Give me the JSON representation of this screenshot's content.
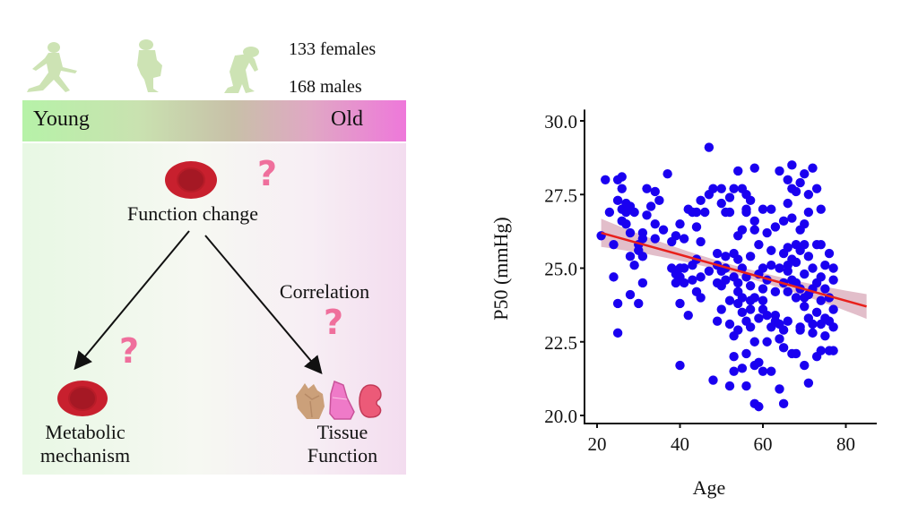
{
  "diagram": {
    "counts": {
      "females": "133 females",
      "males": "168 males"
    },
    "age_bar": {
      "left_label": "Young",
      "right_label": "Old"
    },
    "nodes": {
      "top": "Function change",
      "left_line1": "Metabolic",
      "left_line2": "mechanism",
      "right_line1": "Tissue",
      "right_line2": "Function",
      "edge_label": "Correlation"
    },
    "question_mark": "?",
    "icons": [
      "young-person-icon",
      "middle-aged-person-icon",
      "elderly-person-icon",
      "red-blood-cell-icon",
      "heart-icon",
      "lung-icon",
      "kidney-icon"
    ],
    "colors": {
      "figure": "#cde3b4",
      "rbc": "#c8202e",
      "question": "#ef6f9c",
      "green": "#b6f2a8",
      "pink": "#ee78da"
    }
  },
  "chart_data": {
    "type": "scatter",
    "title": "",
    "xlabel": "Age",
    "ylabel": "P50 (mmHg)",
    "xlim": [
      17,
      89
    ],
    "ylim": [
      19.8,
      30.2
    ],
    "xticks": [
      20,
      40,
      60,
      80
    ],
    "yticks": [
      20.0,
      22.5,
      25.0,
      27.5,
      30.0
    ],
    "xtick_labels": [
      "20",
      "40",
      "60",
      "80"
    ],
    "ytick_labels": [
      "20.0",
      "22.5",
      "25.0",
      "27.5",
      "30.0"
    ],
    "grid": false,
    "legend": "none",
    "point_color": "#1a00f0",
    "fit": {
      "type": "linear",
      "color": "#e8201c",
      "ci_color": "#d8a8b8",
      "x": [
        21,
        85
      ],
      "y": [
        26.2,
        23.7
      ],
      "ci_halfwidth_ends": [
        0.48,
        0.42
      ],
      "ci_halfwidth_mid": 0.15
    },
    "points": [
      [
        21,
        26.1
      ],
      [
        22,
        28.0
      ],
      [
        23,
        26.9
      ],
      [
        24,
        25.8
      ],
      [
        24,
        24.7
      ],
      [
        25,
        22.8
      ],
      [
        25,
        23.8
      ],
      [
        25,
        27.3
      ],
      [
        25,
        28.0
      ],
      [
        26,
        27.0
      ],
      [
        26,
        28.1
      ],
      [
        26,
        26.6
      ],
      [
        26,
        27.7
      ],
      [
        27,
        26.9
      ],
      [
        27,
        27.2
      ],
      [
        27,
        26.5
      ],
      [
        28,
        26.2
      ],
      [
        28,
        25.4
      ],
      [
        28,
        24.1
      ],
      [
        29,
        26.9
      ],
      [
        29,
        25.1
      ],
      [
        30,
        25.8
      ],
      [
        30,
        23.8
      ],
      [
        30,
        25.6
      ],
      [
        31,
        26.0
      ],
      [
        31,
        25.4
      ],
      [
        31,
        24.5
      ],
      [
        31,
        26.2
      ],
      [
        32,
        27.7
      ],
      [
        32,
        26.8
      ],
      [
        33,
        27.1
      ],
      [
        34,
        27.6
      ],
      [
        34,
        26.5
      ],
      [
        34,
        26.0
      ],
      [
        35,
        27.3
      ],
      [
        36,
        26.3
      ],
      [
        37,
        28.2
      ],
      [
        38,
        25.0
      ],
      [
        38,
        25.9
      ],
      [
        39,
        24.5
      ],
      [
        39,
        24.8
      ],
      [
        39,
        26.1
      ],
      [
        40,
        23.8
      ],
      [
        40,
        24.7
      ],
      [
        40,
        25.0
      ],
      [
        40,
        21.7
      ],
      [
        40,
        26.5
      ],
      [
        41,
        26.0
      ],
      [
        41,
        25.0
      ],
      [
        41,
        24.5
      ],
      [
        42,
        27.0
      ],
      [
        42,
        23.4
      ],
      [
        43,
        25.1
      ],
      [
        43,
        24.6
      ],
      [
        44,
        26.9
      ],
      [
        44,
        25.3
      ],
      [
        44,
        24.2
      ],
      [
        44,
        26.4
      ],
      [
        45,
        27.3
      ],
      [
        45,
        25.9
      ],
      [
        45,
        24.7
      ],
      [
        45,
        24.0
      ],
      [
        46,
        26.9
      ],
      [
        47,
        24.9
      ],
      [
        47,
        27.5
      ],
      [
        48,
        21.2
      ],
      [
        48,
        27.7
      ],
      [
        49,
        25.5
      ],
      [
        49,
        24.5
      ],
      [
        49,
        23.2
      ],
      [
        49,
        25.1
      ],
      [
        50,
        24.4
      ],
      [
        50,
        24.9
      ],
      [
        50,
        27.2
      ],
      [
        50,
        23.6
      ],
      [
        51,
        26.9
      ],
      [
        51,
        25.4
      ],
      [
        51,
        24.6
      ],
      [
        52,
        21.0
      ],
      [
        52,
        27.4
      ],
      [
        52,
        26.9
      ],
      [
        52,
        23.9
      ],
      [
        52,
        23.1
      ],
      [
        53,
        27.7
      ],
      [
        53,
        25.5
      ],
      [
        53,
        22.7
      ],
      [
        53,
        22.0
      ],
      [
        53,
        21.5
      ],
      [
        54,
        26.1
      ],
      [
        54,
        24.2
      ],
      [
        54,
        23.8
      ],
      [
        54,
        28.3
      ],
      [
        54,
        22.9
      ],
      [
        54,
        24.5
      ],
      [
        55,
        27.7
      ],
      [
        55,
        26.3
      ],
      [
        55,
        25.0
      ],
      [
        55,
        23.5
      ],
      [
        55,
        21.6
      ],
      [
        56,
        27.5
      ],
      [
        56,
        27.0
      ],
      [
        56,
        24.7
      ],
      [
        56,
        23.2
      ],
      [
        56,
        22.1
      ],
      [
        56,
        21.0
      ],
      [
        57,
        25.4
      ],
      [
        57,
        24.4
      ],
      [
        57,
        23.9
      ],
      [
        57,
        23.0
      ],
      [
        57,
        27.3
      ],
      [
        58,
        28.4
      ],
      [
        58,
        26.6
      ],
      [
        58,
        26.3
      ],
      [
        58,
        24.0
      ],
      [
        58,
        22.5
      ],
      [
        58,
        21.7
      ],
      [
        58,
        20.4
      ],
      [
        59,
        25.8
      ],
      [
        59,
        24.8
      ],
      [
        59,
        23.3
      ],
      [
        59,
        21.8
      ],
      [
        59,
        20.3
      ],
      [
        60,
        27.0
      ],
      [
        60,
        25.0
      ],
      [
        60,
        24.3
      ],
      [
        60,
        23.6
      ],
      [
        60,
        21.5
      ],
      [
        61,
        26.2
      ],
      [
        61,
        24.6
      ],
      [
        61,
        23.4
      ],
      [
        61,
        22.5
      ],
      [
        62,
        27.0
      ],
      [
        62,
        25.6
      ],
      [
        62,
        25.1
      ],
      [
        62,
        23.0
      ],
      [
        62,
        21.5
      ],
      [
        63,
        26.4
      ],
      [
        63,
        24.2
      ],
      [
        63,
        23.4
      ],
      [
        64,
        28.3
      ],
      [
        64,
        25.0
      ],
      [
        64,
        23.1
      ],
      [
        64,
        22.6
      ],
      [
        64,
        20.9
      ],
      [
        65,
        26.6
      ],
      [
        65,
        25.5
      ],
      [
        65,
        24.5
      ],
      [
        65,
        22.9
      ],
      [
        65,
        22.3
      ],
      [
        65,
        20.4
      ],
      [
        66,
        28.0
      ],
      [
        66,
        27.2
      ],
      [
        66,
        25.7
      ],
      [
        66,
        24.9
      ],
      [
        66,
        24.2
      ],
      [
        66,
        23.2
      ],
      [
        67,
        28.5
      ],
      [
        67,
        27.7
      ],
      [
        67,
        26.7
      ],
      [
        67,
        25.3
      ],
      [
        67,
        24.6
      ],
      [
        67,
        22.1
      ],
      [
        68,
        27.6
      ],
      [
        68,
        25.8
      ],
      [
        68,
        25.2
      ],
      [
        68,
        24.0
      ],
      [
        68,
        22.1
      ],
      [
        69,
        27.9
      ],
      [
        69,
        26.3
      ],
      [
        69,
        25.6
      ],
      [
        69,
        24.3
      ],
      [
        69,
        23.0
      ],
      [
        69,
        22.9
      ],
      [
        70,
        28.2
      ],
      [
        70,
        26.5
      ],
      [
        70,
        25.8
      ],
      [
        70,
        24.8
      ],
      [
        70,
        23.7
      ],
      [
        70,
        21.7
      ],
      [
        71,
        27.5
      ],
      [
        71,
        26.9
      ],
      [
        71,
        25.4
      ],
      [
        71,
        24.1
      ],
      [
        71,
        23.3
      ],
      [
        71,
        21.1
      ],
      [
        72,
        28.4
      ],
      [
        72,
        25.0
      ],
      [
        72,
        24.3
      ],
      [
        72,
        23.1
      ],
      [
        72,
        22.8
      ],
      [
        73,
        27.7
      ],
      [
        73,
        25.8
      ],
      [
        73,
        24.5
      ],
      [
        73,
        23.5
      ],
      [
        73,
        22.0
      ],
      [
        74,
        27.0
      ],
      [
        74,
        25.8
      ],
      [
        74,
        24.7
      ],
      [
        74,
        23.9
      ],
      [
        74,
        23.1
      ],
      [
        74,
        22.2
      ],
      [
        75,
        25.1
      ],
      [
        75,
        24.3
      ],
      [
        75,
        23.3
      ],
      [
        75,
        22.7
      ],
      [
        76,
        25.5
      ],
      [
        76,
        24.0
      ],
      [
        76,
        23.2
      ],
      [
        76,
        22.2
      ],
      [
        77,
        25.0
      ],
      [
        77,
        24.6
      ],
      [
        77,
        23.6
      ],
      [
        77,
        23.0
      ],
      [
        77,
        22.2
      ],
      [
        47,
        29.1
      ],
      [
        28,
        27.1
      ],
      [
        27,
        26.5
      ],
      [
        43,
        26.9
      ],
      [
        50,
        27.7
      ],
      [
        51,
        25.0
      ],
      [
        53,
        24.7
      ],
      [
        55,
        24.0
      ],
      [
        57,
        23.6
      ],
      [
        60,
        23.9
      ],
      [
        63,
        23.2
      ],
      [
        66,
        25.1
      ],
      [
        68,
        24.5
      ],
      [
        70,
        24.0
      ],
      [
        56,
        26.9
      ],
      [
        54,
        25.3
      ]
    ]
  }
}
